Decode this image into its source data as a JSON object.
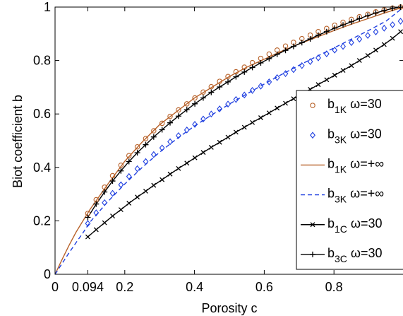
{
  "chart_data": {
    "type": "line",
    "xlabel": "Porosity c",
    "ylabel": "Biot coefficient b",
    "xlim": [
      0,
      1
    ],
    "ylim": [
      0,
      1
    ],
    "grid": false,
    "legend_position": "lower-right",
    "x_ticks": [
      {
        "value": 0,
        "label": "0"
      },
      {
        "value": 0.094,
        "label": "0.094"
      },
      {
        "value": 0.2,
        "label": "0.2"
      },
      {
        "value": 0.4,
        "label": "0.4"
      },
      {
        "value": 0.6,
        "label": "0.6"
      },
      {
        "value": 0.8,
        "label": "0.8"
      }
    ],
    "y_ticks": [
      {
        "value": 0,
        "label": "0"
      },
      {
        "value": 0.2,
        "label": "0.2"
      },
      {
        "value": 0.4,
        "label": "0.4"
      },
      {
        "value": 0.6,
        "label": "0.6"
      },
      {
        "value": 0.8,
        "label": "0.8"
      },
      {
        "value": 1,
        "label": "1"
      }
    ],
    "series": [
      {
        "name": "b_1K ω=30",
        "legend": {
          "main": "b",
          "sub": "1K",
          "suffix": " ω=30"
        },
        "color": "#b8622a",
        "line": "none",
        "marker": "circle",
        "x": [
          0.094,
          0.118,
          0.142,
          0.165,
          0.189,
          0.212,
          0.236,
          0.26,
          0.283,
          0.307,
          0.33,
          0.354,
          0.378,
          0.401,
          0.425,
          0.448,
          0.472,
          0.496,
          0.519,
          0.543,
          0.566,
          0.59,
          0.614,
          0.637,
          0.661,
          0.684,
          0.708,
          0.732,
          0.755,
          0.779,
          0.802,
          0.826,
          0.85,
          0.873,
          0.897,
          0.92,
          0.944,
          0.968,
          0.991
        ],
        "y": [
          0.228,
          0.279,
          0.326,
          0.369,
          0.408,
          0.444,
          0.477,
          0.508,
          0.537,
          0.565,
          0.591,
          0.615,
          0.638,
          0.66,
          0.682,
          0.702,
          0.722,
          0.74,
          0.758,
          0.775,
          0.792,
          0.808,
          0.824,
          0.839,
          0.854,
          0.868,
          0.882,
          0.895,
          0.908,
          0.92,
          0.932,
          0.943,
          0.954,
          0.964,
          0.973,
          0.982,
          0.99,
          0.996,
          1.0
        ]
      },
      {
        "name": "b_3K ω=30",
        "legend": {
          "main": "b",
          "sub": "3K",
          "suffix": " ω=30"
        },
        "color": "#1f3fe0",
        "line": "none",
        "marker": "diamond",
        "x": [
          0.094,
          0.118,
          0.142,
          0.165,
          0.189,
          0.212,
          0.236,
          0.26,
          0.283,
          0.307,
          0.33,
          0.354,
          0.378,
          0.401,
          0.425,
          0.448,
          0.472,
          0.496,
          0.519,
          0.543,
          0.566,
          0.59,
          0.614,
          0.637,
          0.661,
          0.684,
          0.708,
          0.732,
          0.755,
          0.779,
          0.802,
          0.826,
          0.85,
          0.873,
          0.897,
          0.92,
          0.944,
          0.968,
          0.991
        ],
        "y": [
          0.19,
          0.23,
          0.268,
          0.303,
          0.335,
          0.366,
          0.395,
          0.422,
          0.448,
          0.473,
          0.496,
          0.519,
          0.54,
          0.561,
          0.581,
          0.6,
          0.619,
          0.637,
          0.654,
          0.671,
          0.688,
          0.704,
          0.72,
          0.736,
          0.751,
          0.766,
          0.781,
          0.796,
          0.81,
          0.825,
          0.839,
          0.853,
          0.867,
          0.88,
          0.894,
          0.907,
          0.921,
          0.934,
          0.947
        ]
      },
      {
        "name": "b_1K ω=+∞",
        "legend": {
          "main": "b",
          "sub": "1K",
          "suffix": " ω=+∞"
        },
        "color": "#b8622a",
        "line": "solid",
        "marker": "none",
        "x": [
          0,
          0.02,
          0.04,
          0.06,
          0.08,
          0.1,
          0.15,
          0.2,
          0.25,
          0.3,
          0.35,
          0.4,
          0.45,
          0.5,
          0.55,
          0.6,
          0.65,
          0.7,
          0.75,
          0.8,
          0.85,
          0.9,
          0.95,
          1.0
        ],
        "y": [
          0,
          0.055,
          0.108,
          0.157,
          0.2,
          0.242,
          0.335,
          0.423,
          0.495,
          0.56,
          0.61,
          0.66,
          0.7,
          0.74,
          0.775,
          0.805,
          0.835,
          0.862,
          0.887,
          0.912,
          0.936,
          0.958,
          0.98,
          1.0
        ]
      },
      {
        "name": "b_3K ω=+∞",
        "legend": {
          "main": "b",
          "sub": "3K",
          "suffix": " ω=+∞"
        },
        "color": "#1f3fe0",
        "line": "dashed",
        "marker": "none",
        "x": [
          0,
          0.02,
          0.04,
          0.06,
          0.08,
          0.1,
          0.15,
          0.2,
          0.25,
          0.3,
          0.35,
          0.4,
          0.45,
          0.5,
          0.55,
          0.6,
          0.65,
          0.7,
          0.75,
          0.8,
          0.85,
          0.9,
          0.95,
          1.0
        ],
        "y": [
          0,
          0.04,
          0.08,
          0.118,
          0.155,
          0.195,
          0.27,
          0.338,
          0.4,
          0.457,
          0.508,
          0.555,
          0.597,
          0.637,
          0.675,
          0.712,
          0.748,
          0.782,
          0.815,
          0.847,
          0.88,
          0.913,
          0.948,
          1.0
        ]
      },
      {
        "name": "b_1C ω=30",
        "legend": {
          "main": "b",
          "sub": "1C",
          "suffix": " ω=30"
        },
        "color": "#000000",
        "line": "solid",
        "marker": "x",
        "x": [
          0.094,
          0.118,
          0.142,
          0.165,
          0.189,
          0.212,
          0.236,
          0.26,
          0.283,
          0.307,
          0.33,
          0.354,
          0.378,
          0.401,
          0.425,
          0.448,
          0.472,
          0.496,
          0.519,
          0.543,
          0.566,
          0.59,
          0.614,
          0.637,
          0.661,
          0.684,
          0.708,
          0.732,
          0.755,
          0.779,
          0.802,
          0.826,
          0.85,
          0.873,
          0.897,
          0.92,
          0.944,
          0.968,
          0.991
        ],
        "y": [
          0.14,
          0.167,
          0.193,
          0.218,
          0.242,
          0.266,
          0.289,
          0.311,
          0.333,
          0.354,
          0.375,
          0.396,
          0.416,
          0.436,
          0.456,
          0.475,
          0.494,
          0.513,
          0.532,
          0.55,
          0.568,
          0.586,
          0.604,
          0.622,
          0.64,
          0.657,
          0.675,
          0.692,
          0.71,
          0.728,
          0.745,
          0.763,
          0.781,
          0.8,
          0.819,
          0.839,
          0.86,
          0.883,
          0.908
        ]
      },
      {
        "name": "b_3C ω=30",
        "legend": {
          "main": "b",
          "sub": "3C",
          "suffix": " ω=30"
        },
        "color": "#000000",
        "line": "solid",
        "marker": "plus",
        "x": [
          0.094,
          0.118,
          0.142,
          0.165,
          0.189,
          0.212,
          0.236,
          0.26,
          0.283,
          0.307,
          0.33,
          0.354,
          0.378,
          0.401,
          0.425,
          0.448,
          0.472,
          0.496,
          0.519,
          0.543,
          0.566,
          0.59,
          0.614,
          0.637,
          0.661,
          0.684,
          0.708,
          0.732,
          0.755,
          0.779,
          0.802,
          0.826,
          0.85,
          0.873,
          0.897,
          0.92,
          0.944,
          0.968,
          0.991
        ],
        "y": [
          0.213,
          0.263,
          0.308,
          0.349,
          0.387,
          0.422,
          0.455,
          0.485,
          0.514,
          0.541,
          0.567,
          0.592,
          0.616,
          0.638,
          0.66,
          0.681,
          0.701,
          0.72,
          0.739,
          0.757,
          0.774,
          0.791,
          0.807,
          0.823,
          0.838,
          0.853,
          0.867,
          0.881,
          0.895,
          0.908,
          0.921,
          0.933,
          0.945,
          0.957,
          0.968,
          0.978,
          0.987,
          0.995,
          1.0
        ]
      }
    ]
  }
}
